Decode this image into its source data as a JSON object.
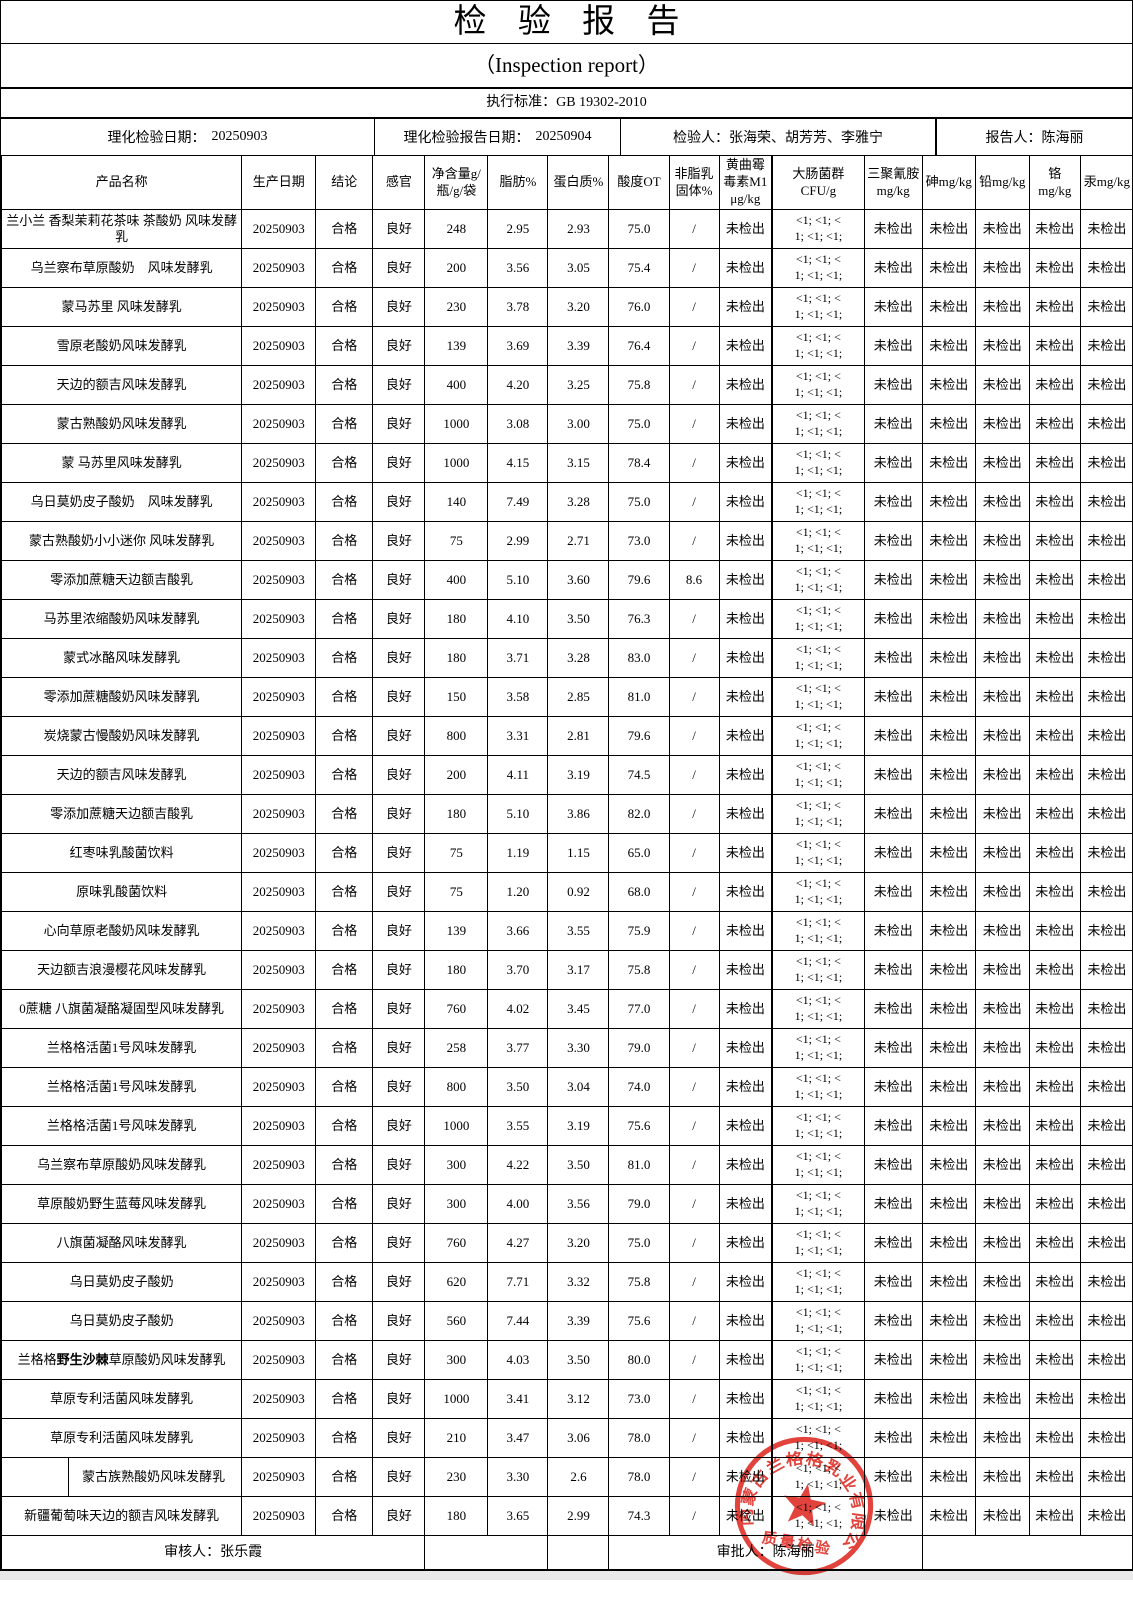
{
  "title": "检验报告",
  "subtitle": "（Inspection  report）",
  "standard": "执行标准：GB 19302-2010",
  "info": {
    "phys_date_label": "理化检验日期：",
    "phys_date": "20250903",
    "report_date_label": "理化检验报告日期：",
    "report_date": "20250904",
    "inspectors_label": "检验人：",
    "inspectors": "张海荣、胡芳芳、李雅宁",
    "reporter_label": "报告人：",
    "reporter": "陈海丽"
  },
  "table": {
    "headers": [
      {
        "key": "product-name",
        "lines": [
          "产品名称"
        ]
      },
      {
        "key": "production-date",
        "lines": [
          "生产日期"
        ]
      },
      {
        "key": "conclusion",
        "lines": [
          "结论"
        ]
      },
      {
        "key": "sensory",
        "lines": [
          "感官"
        ]
      },
      {
        "key": "net-content",
        "lines": [
          "净含量g/",
          "瓶/g/袋"
        ]
      },
      {
        "key": "fat",
        "lines": [
          "脂肪%"
        ]
      },
      {
        "key": "protein",
        "lines": [
          "蛋白质%"
        ]
      },
      {
        "key": "acidity",
        "lines": [
          "酸度OT"
        ]
      },
      {
        "key": "nonfat-solids",
        "lines": [
          "非脂乳",
          "固体%"
        ]
      },
      {
        "key": "aflatoxin",
        "lines": [
          "黄曲霉",
          "毒素M1",
          "μg/kg"
        ]
      },
      {
        "key": "coliform",
        "lines": [
          "大肠菌群",
          "CFU/g"
        ]
      },
      {
        "key": "melamine",
        "lines": [
          "三聚氰胺",
          "mg/kg"
        ]
      },
      {
        "key": "arsenic",
        "lines": [
          "砷mg/kg"
        ]
      },
      {
        "key": "lead",
        "lines": [
          "铅mg/kg"
        ]
      },
      {
        "key": "chromium",
        "lines": [
          "铬mg/kg"
        ]
      },
      {
        "key": "mercury",
        "lines": [
          "汞mg/kg"
        ]
      }
    ],
    "constants": {
      "production_date": "20250903",
      "conclusion": "合格",
      "sensory": "良好",
      "aflatoxin": "未检出",
      "coliform": "<1; <1; <1; <1; <1;",
      "coliform_lines": [
        "<1; <1; <",
        "1; <1; <1;"
      ],
      "melamine": "未检出",
      "arsenic": "未检出",
      "lead": "未检出",
      "chromium": "未检出",
      "mercury": "未检出"
    },
    "rows": [
      {
        "name": "兰小兰 香梨茉莉花茶味 茶酸奶 风味发酵乳",
        "net": "248",
        "fat": "2.95",
        "protein": "2.93",
        "acidity": "75.0",
        "nsmf": "/"
      },
      {
        "name": "乌兰察布草原酸奶　风味发酵乳",
        "net": "200",
        "fat": "3.56",
        "protein": "3.05",
        "acidity": "75.4",
        "nsmf": "/"
      },
      {
        "name": "蒙马苏里 风味发酵乳",
        "net": "230",
        "fat": "3.78",
        "protein": "3.20",
        "acidity": "76.0",
        "nsmf": "/"
      },
      {
        "name": "雪原老酸奶风味发酵乳",
        "net": "139",
        "fat": "3.69",
        "protein": "3.39",
        "acidity": "76.4",
        "nsmf": "/"
      },
      {
        "name": "天边的额吉风味发酵乳",
        "net": "400",
        "fat": "4.20",
        "protein": "3.25",
        "acidity": "75.8",
        "nsmf": "/"
      },
      {
        "name": "蒙古熟酸奶风味发酵乳",
        "net": "1000",
        "fat": "3.08",
        "protein": "3.00",
        "acidity": "75.0",
        "nsmf": "/"
      },
      {
        "name": "蒙 马苏里风味发酵乳",
        "net": "1000",
        "fat": "4.15",
        "protein": "3.15",
        "acidity": "78.4",
        "nsmf": "/"
      },
      {
        "name": "乌日莫奶皮子酸奶　风味发酵乳",
        "net": "140",
        "fat": "7.49",
        "protein": "3.28",
        "acidity": "75.0",
        "nsmf": "/"
      },
      {
        "name": "蒙古熟酸奶小小迷你 风味发酵乳",
        "net": "75",
        "fat": "2.99",
        "protein": "2.71",
        "acidity": "73.0",
        "nsmf": "/"
      },
      {
        "name": "零添加蔗糖天边额吉酸乳",
        "net": "400",
        "fat": "5.10",
        "protein": "3.60",
        "acidity": "79.6",
        "nsmf": "8.6"
      },
      {
        "name": "马苏里浓缩酸奶风味发酵乳",
        "net": "180",
        "fat": "4.10",
        "protein": "3.50",
        "acidity": "76.3",
        "nsmf": "/"
      },
      {
        "name": "蒙式冰酪风味发酵乳",
        "net": "180",
        "fat": "3.71",
        "protein": "3.28",
        "acidity": "83.0",
        "nsmf": "/"
      },
      {
        "name": "零添加蔗糖酸奶风味发酵乳",
        "net": "150",
        "fat": "3.58",
        "protein": "2.85",
        "acidity": "81.0",
        "nsmf": "/"
      },
      {
        "name": "炭烧蒙古慢酸奶风味发酵乳",
        "net": "800",
        "fat": "3.31",
        "protein": "2.81",
        "acidity": "79.6",
        "nsmf": "/"
      },
      {
        "name": "天边的额吉风味发酵乳",
        "net": "200",
        "fat": "4.11",
        "protein": "3.19",
        "acidity": "74.5",
        "nsmf": "/"
      },
      {
        "name": "零添加蔗糖天边额吉酸乳",
        "net": "180",
        "fat": "5.10",
        "protein": "3.86",
        "acidity": "82.0",
        "nsmf": "/"
      },
      {
        "name": "红枣味乳酸菌饮料",
        "net": "75",
        "fat": "1.19",
        "protein": "1.15",
        "acidity": "65.0",
        "nsmf": "/"
      },
      {
        "name": "原味乳酸菌饮料",
        "net": "75",
        "fat": "1.20",
        "protein": "0.92",
        "acidity": "68.0",
        "nsmf": "/"
      },
      {
        "name": "心向草原老酸奶风味发酵乳",
        "net": "139",
        "fat": "3.66",
        "protein": "3.55",
        "acidity": "75.9",
        "nsmf": "/"
      },
      {
        "name": "天边额吉浪漫樱花风味发酵乳",
        "net": "180",
        "fat": "3.70",
        "protein": "3.17",
        "acidity": "75.8",
        "nsmf": "/"
      },
      {
        "name": "0蔗糖 八旗菌凝酪凝固型风味发酵乳",
        "net": "760",
        "fat": "4.02",
        "protein": "3.45",
        "acidity": "77.0",
        "nsmf": "/"
      },
      {
        "name": "兰格格活菌1号风味发酵乳",
        "net": "258",
        "fat": "3.77",
        "protein": "3.30",
        "acidity": "79.0",
        "nsmf": "/"
      },
      {
        "name": "兰格格活菌1号风味发酵乳",
        "net": "800",
        "fat": "3.50",
        "protein": "3.04",
        "acidity": "74.0",
        "nsmf": "/"
      },
      {
        "name": "兰格格活菌1号风味发酵乳",
        "net": "1000",
        "fat": "3.55",
        "protein": "3.19",
        "acidity": "75.6",
        "nsmf": "/"
      },
      {
        "name": "乌兰察布草原酸奶风味发酵乳",
        "net": "300",
        "fat": "4.22",
        "protein": "3.50",
        "acidity": "81.0",
        "nsmf": "/"
      },
      {
        "name": "草原酸奶野生蓝莓风味发酵乳",
        "net": "300",
        "fat": "4.00",
        "protein": "3.56",
        "acidity": "79.0",
        "nsmf": "/"
      },
      {
        "name": "八旗菌凝酪风味发酵乳",
        "net": "760",
        "fat": "4.27",
        "protein": "3.20",
        "acidity": "75.0",
        "nsmf": "/"
      },
      {
        "name": "乌日莫奶皮子酸奶",
        "net": "620",
        "fat": "7.71",
        "protein": "3.32",
        "acidity": "75.8",
        "nsmf": "/"
      },
      {
        "name": "乌日莫奶皮子酸奶",
        "net": "560",
        "fat": "7.44",
        "protein": "3.39",
        "acidity": "75.6",
        "nsmf": "/"
      },
      {
        "name": "兰格格野生沙棘草原酸奶风味发酵乳",
        "bold": "野生沙棘",
        "net": "300",
        "fat": "4.03",
        "protein": "3.50",
        "acidity": "80.0",
        "nsmf": "/"
      },
      {
        "name": "草原专利活菌风味发酵乳",
        "net": "1000",
        "fat": "3.41",
        "protein": "3.12",
        "acidity": "73.0",
        "nsmf": "/"
      },
      {
        "name": "草原专利活菌风味发酵乳",
        "net": "210",
        "fat": "3.47",
        "protein": "3.06",
        "acidity": "78.0",
        "nsmf": "/"
      },
      {
        "name": "蒙古族熟酸奶风味发酵乳",
        "subcell": true,
        "net": "230",
        "fat": "3.30",
        "protein": "2.6",
        "acidity": "78.0",
        "nsmf": "/"
      },
      {
        "name": "新疆葡萄味天边的额吉风味发酵乳",
        "net": "180",
        "fat": "3.65",
        "protein": "2.99",
        "acidity": "74.3",
        "nsmf": "/"
      }
    ]
  },
  "footer": {
    "reviewer_label": "审核人：",
    "reviewer": "张乐霞",
    "approver_label": "审批人：",
    "approver": "陈海丽"
  },
  "stamp": {
    "company": "内蒙古兰格格乳业有限公司",
    "caption": "质量检验",
    "color": "#df2f27"
  }
}
